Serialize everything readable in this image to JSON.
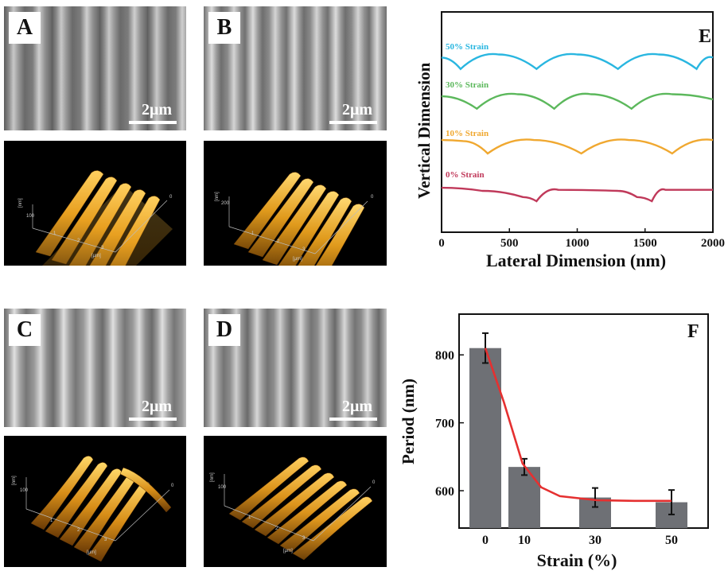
{
  "panels": {
    "A": {
      "letter": "A",
      "scale": "2μm"
    },
    "B": {
      "letter": "B",
      "scale": "2μm"
    },
    "C": {
      "letter": "C",
      "scale": "2μm"
    },
    "D": {
      "letter": "D",
      "scale": "2μm"
    }
  },
  "afm_axis": {
    "unit": "[μm]",
    "z_unit": "[nm]",
    "ticks": [
      "1",
      "2",
      "3"
    ],
    "z_tick_100": "100",
    "z_tick_200": "200",
    "zero": "0"
  },
  "colors": {
    "gold": "#e8a020",
    "strain50": "#29b6e0",
    "strain30": "#5cb85c",
    "strain10": "#f0a830",
    "strain0": "#c0395a",
    "fit": "#e53030",
    "bar": "#6e7075"
  },
  "chart_data": [
    {
      "type": "line",
      "panel_letter": "E",
      "xlabel": "Lateral Dimension (nm)",
      "ylabel": "Vertical Dimension",
      "xlim": [
        0,
        2000
      ],
      "xticks": [
        "0",
        "500",
        "1000",
        "1500",
        "2000"
      ],
      "series": [
        {
          "name": "50% Strain",
          "color": "#29b6e0",
          "x": [
            0,
            140,
            420,
            700,
            1000,
            1300,
            1600,
            1880,
            2000
          ],
          "y": [
            0.2,
            -0.9,
            0.5,
            -0.9,
            0.5,
            -0.9,
            0.5,
            -0.9,
            0.2
          ]
        },
        {
          "name": "30% Strain",
          "color": "#5cb85c",
          "x": [
            0,
            260,
            560,
            830,
            1100,
            1400,
            1700,
            2000
          ],
          "y": [
            0.3,
            -0.9,
            0.5,
            -0.9,
            0.5,
            -0.9,
            0.5,
            0.0
          ]
        },
        {
          "name": "10% Strain",
          "color": "#f0a830",
          "x": [
            0,
            160,
            340,
            680,
            1030,
            1380,
            1700,
            2000
          ],
          "y": [
            0.3,
            0.2,
            -1.0,
            0.3,
            -1.0,
            0.3,
            -1.0,
            0.3
          ]
        },
        {
          "name": "0% Strain",
          "color": "#c0395a",
          "x": [
            0,
            300,
            600,
            700,
            860,
            1300,
            1440,
            1550,
            1650,
            2000
          ],
          "y": [
            0.3,
            0.0,
            -0.6,
            -1.0,
            0.1,
            0.0,
            -0.6,
            -1.0,
            0.1,
            0.1
          ]
        }
      ]
    },
    {
      "type": "bar",
      "panel_letter": "F",
      "xlabel": "Strain (%)",
      "ylabel": "Period (nm)",
      "categories": [
        "0",
        "10",
        "30",
        "50"
      ],
      "values": [
        810,
        635,
        590,
        583
      ],
      "errors": [
        22,
        12,
        14,
        18
      ],
      "ylim": [
        545,
        860
      ],
      "yticks": [
        "600",
        "700",
        "800"
      ],
      "fit": {
        "x": [
          0,
          5,
          10,
          15,
          20,
          30,
          40,
          50
        ],
        "y": [
          810,
          730,
          640,
          605,
          592,
          586,
          585,
          585
        ]
      }
    }
  ]
}
